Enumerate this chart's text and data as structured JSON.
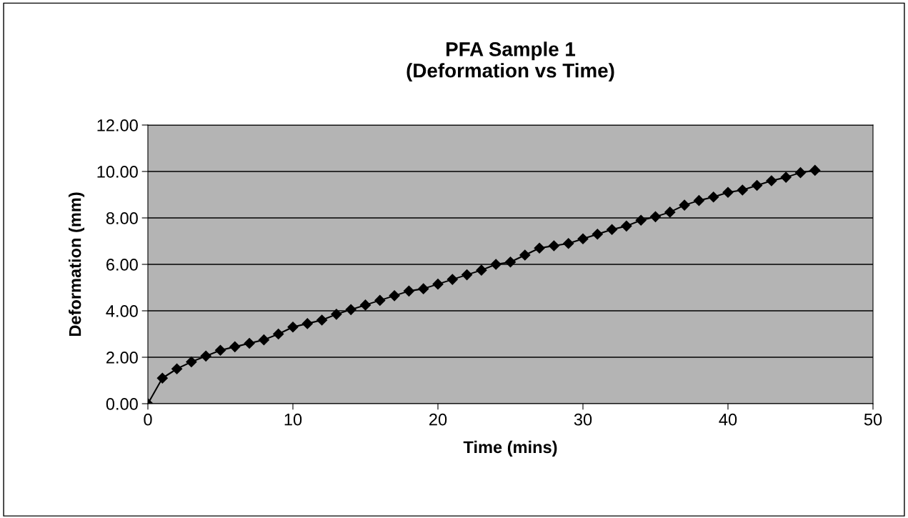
{
  "chart_data": {
    "type": "line",
    "title": "PFA Sample 1\n(Deformation vs Time)",
    "xlabel": "Time (mins)",
    "ylabel": "Deformation (mm)",
    "x": [
      0,
      1,
      2,
      3,
      4,
      5,
      6,
      7,
      8,
      9,
      10,
      11,
      12,
      13,
      14,
      15,
      16,
      17,
      18,
      19,
      20,
      21,
      22,
      23,
      24,
      25,
      26,
      27,
      28,
      29,
      30,
      31,
      32,
      33,
      34,
      35,
      36,
      37,
      38,
      39,
      40,
      41,
      42,
      43,
      44,
      45,
      46
    ],
    "series": [
      {
        "color": "#000000",
        "values": [
          0,
          1.1,
          1.5,
          1.8,
          2.05,
          2.3,
          2.45,
          2.6,
          2.75,
          3.0,
          3.3,
          3.45,
          3.6,
          3.85,
          4.05,
          4.25,
          4.45,
          4.65,
          4.85,
          4.95,
          5.15,
          5.35,
          5.55,
          5.75,
          6.0,
          6.1,
          6.4,
          6.7,
          6.8,
          6.9,
          7.1,
          7.3,
          7.5,
          7.65,
          7.9,
          8.05,
          8.25,
          8.55,
          8.75,
          8.9,
          9.1,
          9.2,
          9.4,
          9.6,
          9.75,
          9.95,
          10.05
        ]
      }
    ],
    "xlim": [
      0,
      50
    ],
    "xticks": [
      0,
      10,
      20,
      30,
      40,
      50
    ],
    "ylim": [
      0,
      12
    ],
    "yticks": [
      {
        "value": 0,
        "label": "0.00"
      },
      {
        "value": 2,
        "label": "2.00"
      },
      {
        "value": 4,
        "label": "4.00"
      },
      {
        "value": 6,
        "label": "6.00"
      },
      {
        "value": 8,
        "label": "8.00"
      },
      {
        "value": 10,
        "label": "10.00"
      },
      {
        "value": 12,
        "label": "12.00"
      }
    ],
    "grid": "y",
    "marker": "diamond",
    "line_style": "solid",
    "legend": false
  }
}
